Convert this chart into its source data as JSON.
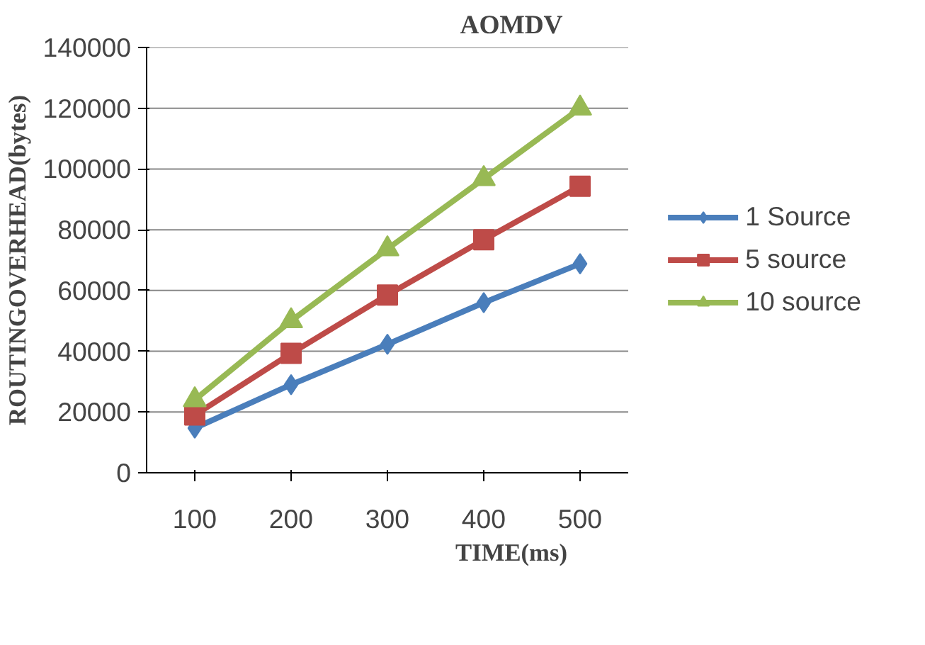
{
  "chart_data": {
    "type": "line",
    "title": "AOMDV",
    "xlabel": "TIME(ms)",
    "ylabel": "ROUTINGOVERHEAD(bytes)",
    "categories": [
      "100",
      "200",
      "300",
      "400",
      "500"
    ],
    "series": [
      {
        "name": "1 Source",
        "color": "#4a7ebb",
        "marker": "diamond",
        "values": [
          14700,
          29000,
          42300,
          56000,
          68800
        ]
      },
      {
        "name": "5 source",
        "color": "#be4b48",
        "marker": "square",
        "values": [
          19000,
          39300,
          58500,
          76700,
          94300
        ]
      },
      {
        "name": "10 source",
        "color": "#98b954",
        "marker": "triangle",
        "values": [
          24000,
          50000,
          73700,
          96800,
          120000
        ]
      }
    ],
    "ylim": [
      0,
      140000
    ],
    "yticks": [
      0,
      20000,
      40000,
      60000,
      80000,
      100000,
      120000,
      140000
    ],
    "grid": "y",
    "legend": "right"
  }
}
